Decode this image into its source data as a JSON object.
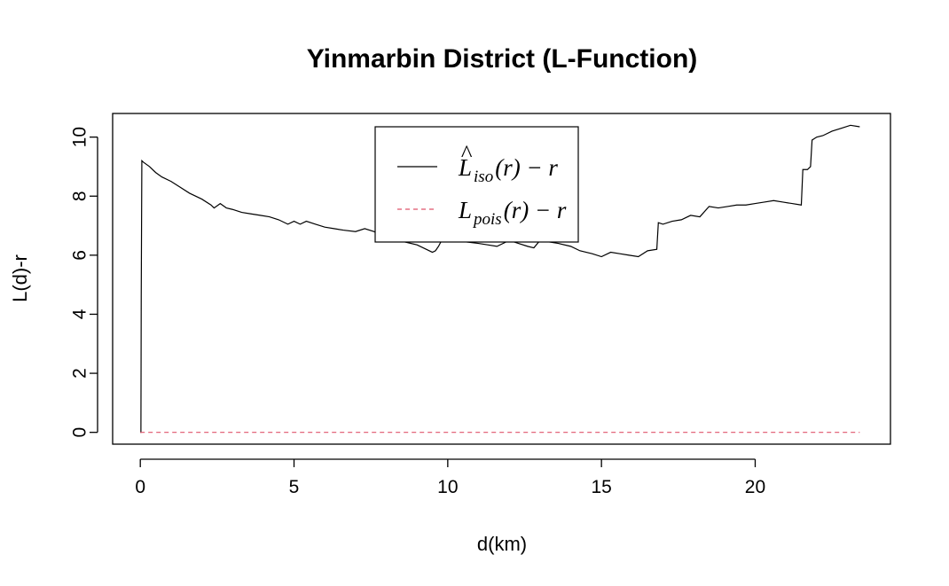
{
  "chart_data": {
    "type": "line",
    "title": "Yinmarbin District (L-Function)",
    "xlabel": "d(km)",
    "ylabel": "L(d)-r",
    "xlim": [
      -0.9,
      24.4
    ],
    "ylim": [
      -0.4,
      10.8
    ],
    "x_ticks": [
      0,
      5,
      10,
      15,
      20
    ],
    "y_ticks": [
      0,
      2,
      4,
      6,
      8,
      10
    ],
    "legend_position": "top-center",
    "series": [
      {
        "name": "L̂iso(r) − r",
        "name_parts": {
          "main": "L",
          "hat": "^",
          "sub": "iso",
          "rest": "(r) − r"
        },
        "color": "#000000",
        "dash": "solid",
        "x": [
          0,
          0.02,
          0.03,
          0.05,
          0.1,
          0.3,
          0.5,
          0.7,
          1.0,
          1.3,
          1.6,
          2.0,
          2.3,
          2.4,
          2.6,
          2.8,
          3.0,
          3.3,
          3.6,
          3.9,
          4.2,
          4.5,
          4.8,
          5.0,
          5.2,
          5.4,
          5.7,
          6.0,
          6.3,
          6.6,
          7.0,
          7.3,
          7.6,
          8.0,
          8.3,
          8.6,
          9.0,
          9.3,
          9.5,
          9.6,
          9.7,
          9.8,
          10.0,
          10.3,
          10.6,
          11.0,
          11.3,
          11.6,
          12.0,
          12.3,
          12.6,
          12.8,
          13.0,
          13.3,
          13.6,
          14.0,
          14.3,
          14.7,
          15.0,
          15.3,
          15.6,
          15.9,
          16.2,
          16.5,
          16.8,
          16.85,
          17.0,
          17.3,
          17.6,
          17.9,
          18.2,
          18.5,
          18.8,
          19.1,
          19.4,
          19.7,
          20.0,
          20.3,
          20.6,
          20.9,
          21.2,
          21.5,
          21.55,
          21.7,
          21.8,
          21.85,
          22.0,
          22.2,
          22.5,
          22.8,
          23.1,
          23.4
        ],
        "y": [
          0,
          0,
          4.6,
          9.2,
          9.15,
          9.0,
          8.8,
          8.65,
          8.5,
          8.3,
          8.1,
          7.9,
          7.7,
          7.6,
          7.75,
          7.6,
          7.55,
          7.45,
          7.4,
          7.35,
          7.3,
          7.2,
          7.05,
          7.15,
          7.05,
          7.15,
          7.05,
          6.95,
          6.9,
          6.85,
          6.8,
          6.9,
          6.8,
          6.6,
          6.55,
          6.45,
          6.35,
          6.2,
          6.1,
          6.15,
          6.3,
          6.5,
          6.55,
          6.5,
          6.45,
          6.4,
          6.35,
          6.3,
          6.5,
          6.4,
          6.3,
          6.25,
          6.5,
          6.45,
          6.4,
          6.3,
          6.15,
          6.05,
          5.95,
          6.1,
          6.05,
          6.0,
          5.95,
          6.15,
          6.2,
          7.1,
          7.05,
          7.15,
          7.2,
          7.35,
          7.3,
          7.65,
          7.6,
          7.65,
          7.7,
          7.7,
          7.75,
          7.8,
          7.85,
          7.8,
          7.75,
          7.7,
          8.9,
          8.9,
          9.0,
          9.9,
          10.0,
          10.05,
          10.2,
          10.3,
          10.4,
          10.35
        ]
      },
      {
        "name": "Lpois(r) − r",
        "name_parts": {
          "main": "L",
          "hat": "",
          "sub": "pois",
          "rest": "(r) − r"
        },
        "color": "#df536b",
        "dash": "dashed",
        "x": [
          0,
          23.4
        ],
        "y": [
          0,
          0
        ]
      }
    ]
  }
}
